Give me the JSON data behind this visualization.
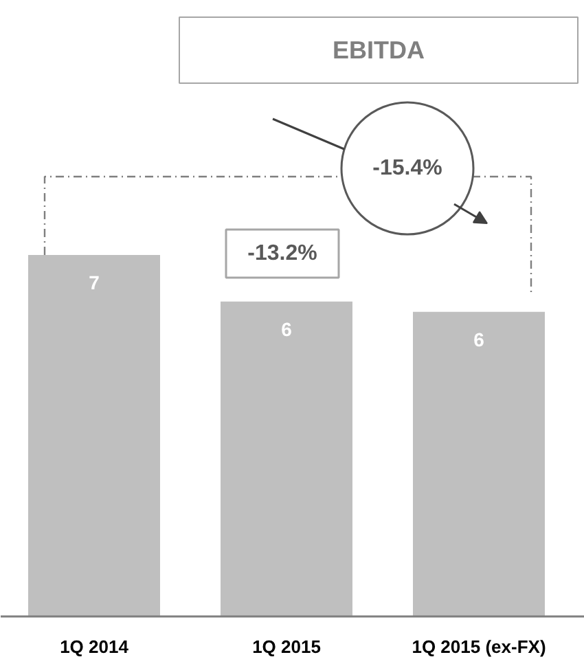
{
  "chart_data": {
    "type": "bar",
    "title": "EBITDA",
    "categories": [
      "1Q 2014",
      "1Q 2015",
      "1Q 2015 (ex-FX)"
    ],
    "values": [
      7,
      6.1,
      5.9
    ],
    "value_labels": [
      "7",
      "6",
      "6"
    ],
    "color": "#bfbfbf",
    "grid": false,
    "annotations": [
      "-13.2%",
      "-15.4%"
    ]
  }
}
